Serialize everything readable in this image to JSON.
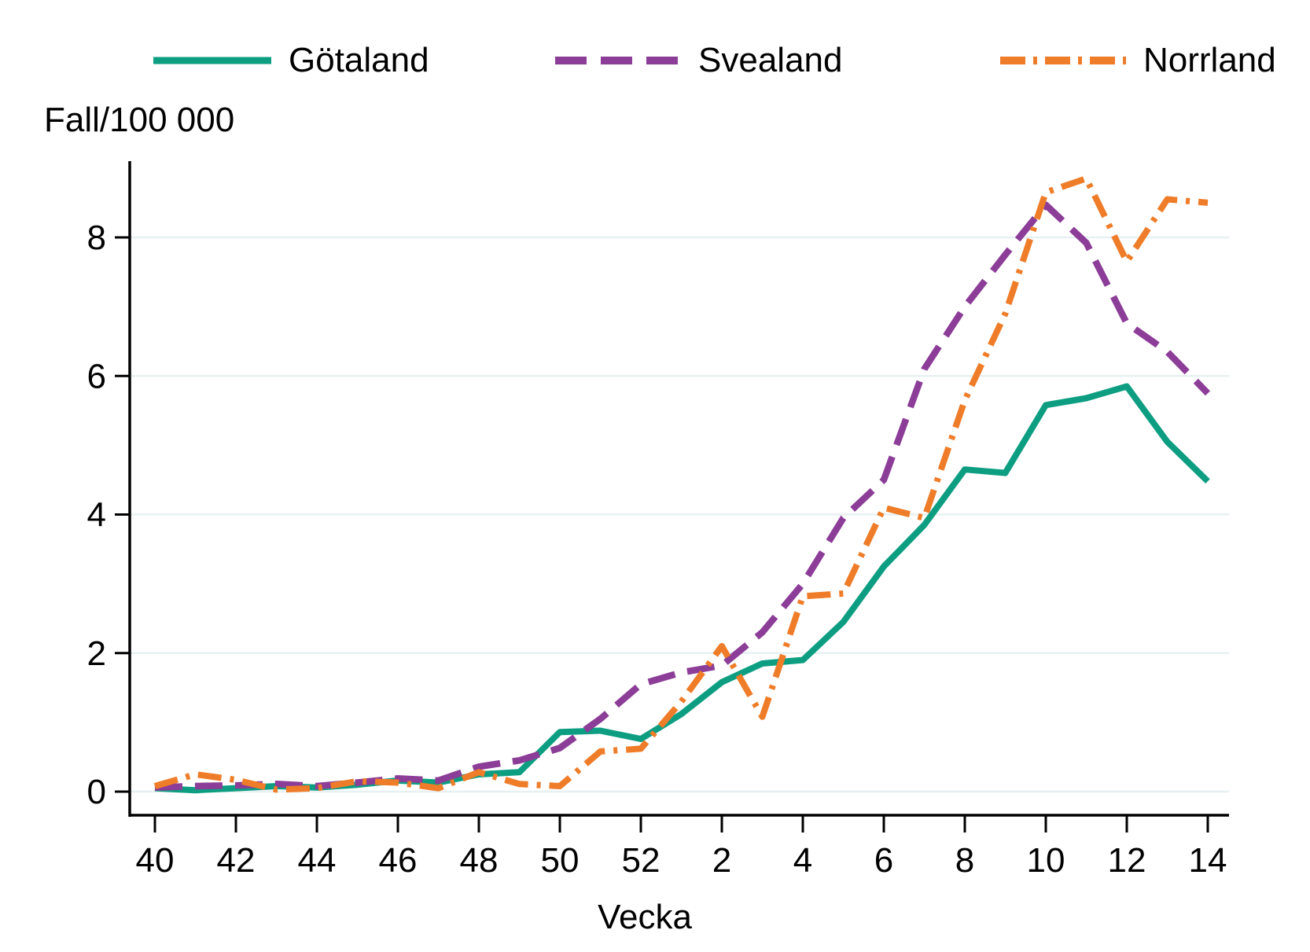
{
  "y_axis_title": "Fall/100 000",
  "x_axis_title": "Vecka",
  "legend": [
    {
      "label": "Götaland",
      "color": "#0d9e82",
      "dash": ""
    },
    {
      "label": "Svealand",
      "color": "#8c3d97",
      "dash": "40 18"
    },
    {
      "label": "Norrland",
      "color": "#ef7c28",
      "dash": "32 10 5 10"
    }
  ],
  "colors": {
    "gotaland": "#0d9e82",
    "svealand": "#8c3d97",
    "norrland": "#ef7c28",
    "gridline": "#e7f0f2",
    "axis": "#000000"
  },
  "chart_data": {
    "type": "line",
    "title": "",
    "xlabel": "Vecka",
    "ylabel": "Fall/100 000",
    "ylim": [
      0,
      9.1
    ],
    "yticks": [
      0,
      2,
      4,
      6,
      8
    ],
    "grid": "horizontal",
    "legend_position": "top",
    "categories": [
      "40",
      "41",
      "42",
      "43",
      "44",
      "45",
      "46",
      "47",
      "48",
      "49",
      "50",
      "51",
      "52",
      "1",
      "2",
      "3",
      "4",
      "5",
      "6",
      "7",
      "8",
      "9",
      "10",
      "11",
      "12",
      "13",
      "14"
    ],
    "x_tick_labels": [
      "40",
      "42",
      "44",
      "46",
      "48",
      "50",
      "52",
      "2",
      "4",
      "6",
      "8",
      "10",
      "12",
      "14"
    ],
    "series": [
      {
        "name": "Götaland",
        "color": "#0d9e82",
        "line_style": "solid",
        "values": [
          0.05,
          0.02,
          0.05,
          0.08,
          0.06,
          0.1,
          0.16,
          0.13,
          0.25,
          0.28,
          0.86,
          0.88,
          0.76,
          1.12,
          1.58,
          1.85,
          1.9,
          2.45,
          3.25,
          3.85,
          4.65,
          4.6,
          5.58,
          5.68,
          5.85,
          5.05,
          4.48
        ]
      },
      {
        "name": "Svealand",
        "color": "#8c3d97",
        "line_style": "dashed",
        "values": [
          0.06,
          0.08,
          0.09,
          0.11,
          0.08,
          0.13,
          0.19,
          0.16,
          0.36,
          0.45,
          0.63,
          1.05,
          1.55,
          1.72,
          1.82,
          2.3,
          3.0,
          3.95,
          4.5,
          6.1,
          7.0,
          7.75,
          8.47,
          7.92,
          6.76,
          6.35,
          5.75
        ]
      },
      {
        "name": "Norrland",
        "color": "#ef7c28",
        "line_style": "dash-dot",
        "values": [
          0.08,
          0.25,
          0.17,
          0.03,
          0.05,
          0.15,
          0.13,
          0.05,
          0.28,
          0.11,
          0.08,
          0.58,
          0.62,
          1.3,
          2.1,
          1.08,
          2.82,
          2.86,
          4.1,
          3.95,
          5.65,
          6.9,
          8.65,
          8.85,
          7.65,
          8.55,
          8.5
        ]
      }
    ]
  }
}
